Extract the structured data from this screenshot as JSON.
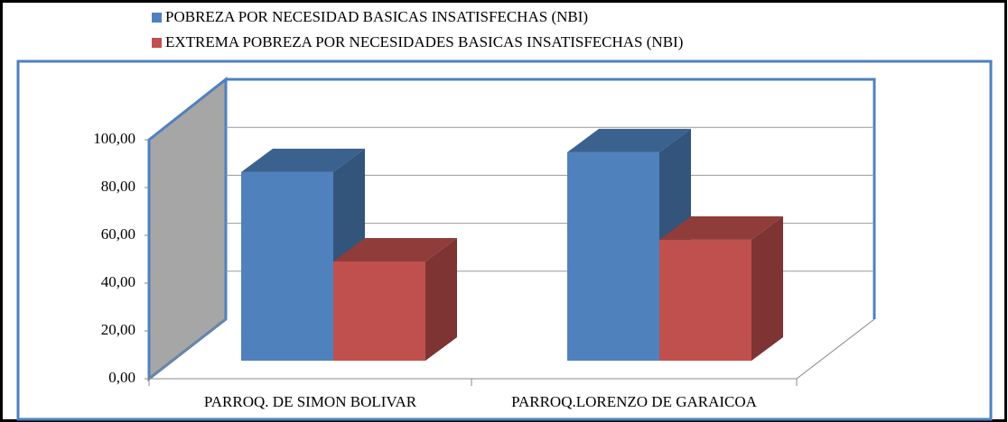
{
  "chart_data": {
    "type": "bar3d",
    "categories": [
      "PARROQ. DE SIMON BOLIVAR",
      "PARROQ.LORENZO DE GARAICOA"
    ],
    "series": [
      {
        "name": "POBREZA POR NECESIDAD BASICAS INSATISFECHAS (NBI)",
        "color": "#4f81bd",
        "values": [
          78.9,
          87.2
        ]
      },
      {
        "name": "EXTREMA POBREZA POR NECESIDADES BASICAS INSATISFECHAS (NBI)",
        "color": "#c0504d",
        "values": [
          41.5,
          50.6
        ]
      }
    ],
    "ylim": [
      0,
      100
    ],
    "yticks": [
      {
        "value": 0,
        "label": "0,00"
      },
      {
        "value": 20,
        "label": "20,00"
      },
      {
        "value": 40,
        "label": "40,00"
      },
      {
        "value": 60,
        "label": "60,00"
      },
      {
        "value": 80,
        "label": "80,00"
      },
      {
        "value": 100,
        "label": "100,00"
      }
    ],
    "grid": true
  }
}
